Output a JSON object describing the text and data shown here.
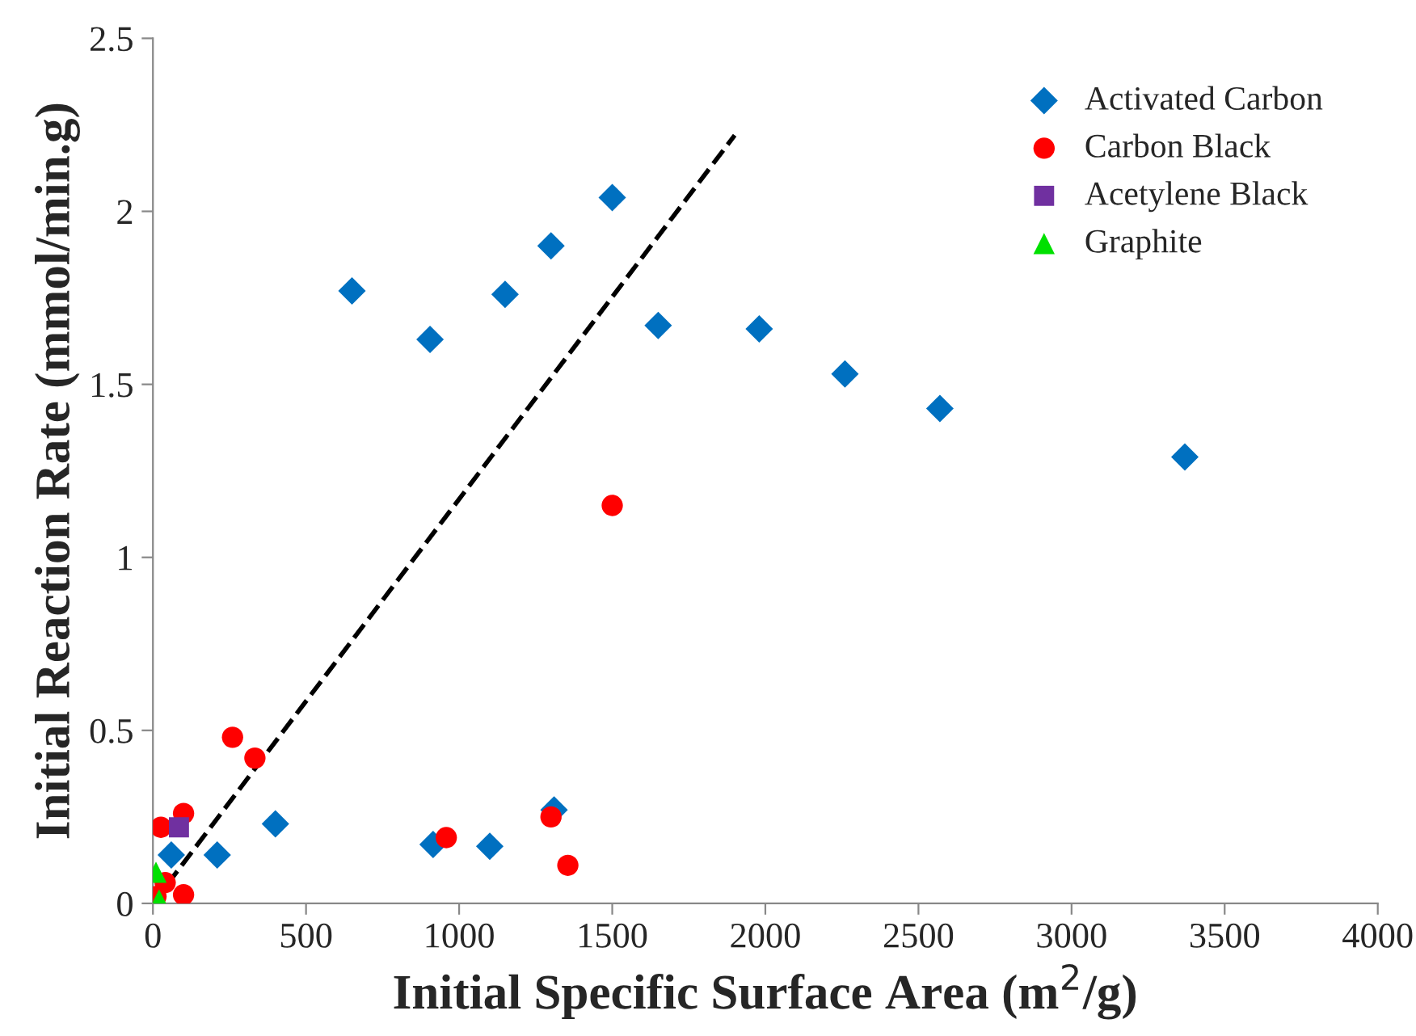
{
  "chart_data": {
    "type": "scatter",
    "xlabel": "Initial Specific Surface Area (m$^{2}$/g)",
    "ylabel": "Initial Reaction Rate (mmol/min.g)",
    "xlim": [
      0,
      4000
    ],
    "xticks": [
      0,
      500,
      1000,
      1500,
      2000,
      2500,
      3000,
      3500,
      4000
    ],
    "ylim": [
      0,
      2.5
    ],
    "yticks": [
      0,
      0.5,
      1,
      1.5,
      2,
      2.5
    ],
    "grid": false,
    "legend": "top right",
    "series": [
      {
        "name": "Activated Carbon",
        "color": "#0070c0",
        "marker": "diamond",
        "x": [
          650,
          905,
          1150,
          1300,
          1500,
          1650,
          1980,
          2260,
          2570,
          3370,
          60,
          210,
          400,
          915,
          1100,
          1310
        ],
        "values": [
          1.77,
          1.63,
          1.76,
          1.9,
          2.04,
          1.67,
          1.66,
          1.53,
          1.43,
          1.29,
          0.14,
          0.14,
          0.23,
          0.17,
          0.165,
          0.27
        ]
      },
      {
        "name": "Carbon Black",
        "color": "#ff0000",
        "marker": "circle",
        "x": [
          26,
          100,
          260,
          333,
          40,
          10,
          100,
          958,
          1300,
          1355,
          1500
        ],
        "values": [
          0.22,
          0.26,
          0.48,
          0.42,
          0.06,
          0.02,
          0.025,
          0.19,
          0.25,
          0.11,
          1.15
        ]
      },
      {
        "name": "Acetylene Black",
        "color": "#7030a0",
        "marker": "square",
        "x": [
          85
        ],
        "values": [
          0.22
        ]
      },
      {
        "name": "Graphite",
        "color": "#00e000",
        "marker": "triangle",
        "x": [
          10,
          20
        ],
        "values": [
          0.09,
          0.01
        ]
      },
      {
        "type": "line",
        "color": "#000000",
        "line_style": "dashed",
        "marker": "none",
        "x": [
          0,
          1900
        ],
        "values": [
          0,
          2.22
        ]
      }
    ]
  }
}
